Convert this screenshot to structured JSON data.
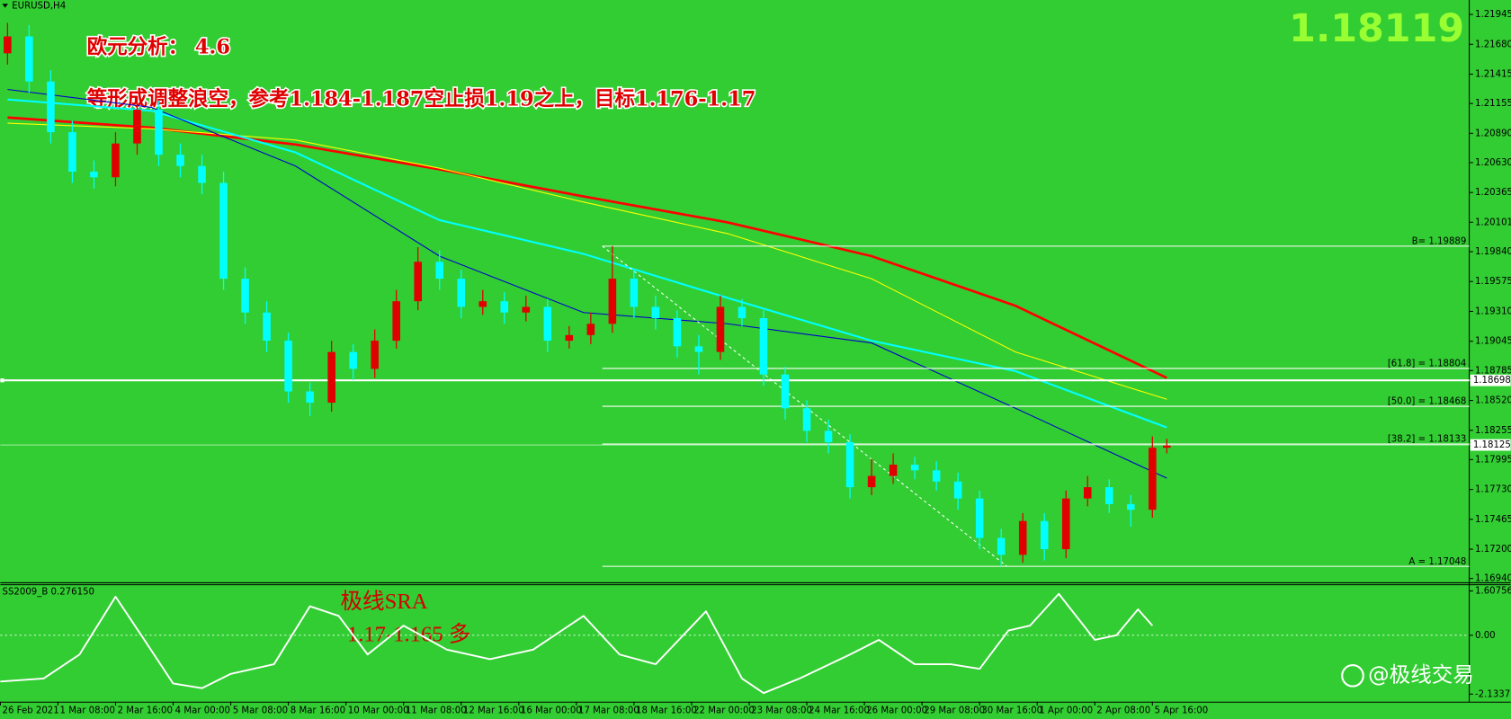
{
  "chart_data": [
    {
      "type": "candlestick",
      "symbol": "EURUSD,H4",
      "bid": 1.18119,
      "annotations": [
        "欧元分析：  4.6",
        "等形成调整浪空，参考1.184-1.187空止损1.19之上，目标1.176-1.17"
      ],
      "up_color": "#e00000",
      "down_color": "#00ffff",
      "x": [
        0,
        3,
        6,
        9,
        12,
        15,
        18,
        21,
        24,
        27,
        30,
        33,
        36,
        39,
        42,
        45,
        48,
        51,
        54,
        57,
        60,
        63,
        66,
        69,
        72,
        75,
        78,
        81,
        84,
        87,
        90,
        93,
        96,
        99,
        102,
        105,
        108,
        111,
        114,
        117,
        120,
        123,
        126,
        129,
        132,
        135,
        138,
        141,
        144,
        147,
        150,
        153,
        156,
        159,
        161
      ],
      "open": [
        1.216,
        1.2175,
        1.2135,
        1.209,
        1.2055,
        1.205,
        1.208,
        1.211,
        1.207,
        1.206,
        1.2045,
        1.196,
        1.193,
        1.1905,
        1.186,
        1.185,
        1.1895,
        1.188,
        1.1905,
        1.194,
        1.1975,
        1.196,
        1.1935,
        1.194,
        1.193,
        1.1935,
        1.1905,
        1.191,
        1.192,
        1.196,
        1.1935,
        1.1925,
        1.19,
        1.1895,
        1.1935,
        1.1925,
        1.1875,
        1.1845,
        1.1825,
        1.1815,
        1.1775,
        1.1785,
        1.1795,
        1.179,
        1.178,
        1.1765,
        1.173,
        1.1715,
        1.1745,
        1.172,
        1.1765,
        1.1775,
        1.176,
        1.1755,
        1.181
      ],
      "high": [
        1.2187,
        1.2185,
        1.2145,
        1.21,
        1.2065,
        1.209,
        1.2122,
        1.2118,
        1.208,
        1.207,
        1.2055,
        1.197,
        1.194,
        1.1912,
        1.1868,
        1.1905,
        1.1902,
        1.1915,
        1.195,
        1.1988,
        1.1985,
        1.1968,
        1.195,
        1.1948,
        1.1945,
        1.1942,
        1.1918,
        1.193,
        1.1989,
        1.1968,
        1.1945,
        1.1932,
        1.191,
        1.1945,
        1.1942,
        1.1932,
        1.1882,
        1.1852,
        1.1835,
        1.1822,
        1.18,
        1.1805,
        1.1802,
        1.1798,
        1.1788,
        1.1772,
        1.1738,
        1.1752,
        1.1752,
        1.1772,
        1.1785,
        1.1782,
        1.1768,
        1.182,
        1.1818
      ],
      "low": [
        1.215,
        1.2125,
        1.208,
        1.2045,
        1.204,
        1.2042,
        1.207,
        1.206,
        1.205,
        1.2035,
        1.195,
        1.192,
        1.1895,
        1.185,
        1.1838,
        1.1842,
        1.187,
        1.1872,
        1.1898,
        1.1932,
        1.195,
        1.1925,
        1.1928,
        1.192,
        1.1922,
        1.1895,
        1.1898,
        1.1902,
        1.1912,
        1.1925,
        1.1915,
        1.189,
        1.1875,
        1.1888,
        1.1918,
        1.1865,
        1.1835,
        1.1815,
        1.1805,
        1.1765,
        1.1768,
        1.1778,
        1.1782,
        1.1772,
        1.1755,
        1.172,
        1.1705,
        1.1708,
        1.171,
        1.1712,
        1.1758,
        1.1752,
        1.174,
        1.1748,
        1.1805
      ],
      "close": [
        1.2175,
        1.2135,
        1.209,
        1.2055,
        1.205,
        1.208,
        1.211,
        1.207,
        1.206,
        1.2045,
        1.196,
        1.193,
        1.1905,
        1.186,
        1.185,
        1.1895,
        1.188,
        1.1905,
        1.194,
        1.1975,
        1.196,
        1.1935,
        1.194,
        1.193,
        1.1935,
        1.1905,
        1.191,
        1.192,
        1.196,
        1.1935,
        1.1925,
        1.19,
        1.1895,
        1.1935,
        1.1925,
        1.1875,
        1.1845,
        1.1825,
        1.1815,
        1.1775,
        1.1785,
        1.1795,
        1.179,
        1.178,
        1.1765,
        1.173,
        1.1715,
        1.1745,
        1.172,
        1.1765,
        1.1775,
        1.176,
        1.1755,
        1.181,
        1.1812
      ],
      "moving_averages": [
        {
          "color": "#ff0000",
          "x": [
            0,
            20,
            40,
            60,
            80,
            100,
            120,
            140,
            161
          ],
          "values": [
            1.2103,
            1.2094,
            1.2079,
            1.2057,
            1.2033,
            1.201,
            1.198,
            1.1936,
            1.1872
          ]
        },
        {
          "color": "#ffff00",
          "x": [
            0,
            20,
            40,
            60,
            80,
            100,
            120,
            140,
            161
          ],
          "values": [
            1.2098,
            1.2093,
            1.2083,
            1.2058,
            1.2028,
            1.2,
            1.196,
            1.1895,
            1.1853
          ]
        },
        {
          "color": "#00ffff",
          "x": [
            0,
            20,
            40,
            60,
            80,
            100,
            120,
            140,
            161
          ],
          "values": [
            1.2119,
            1.2109,
            1.2072,
            1.2012,
            1.1982,
            1.1943,
            1.1905,
            1.1878,
            1.1828
          ]
        },
        {
          "color": "#0000cd",
          "x": [
            0,
            20,
            40,
            60,
            80,
            100,
            120,
            140,
            161
          ],
          "values": [
            1.2128,
            1.2112,
            1.206,
            1.198,
            1.193,
            1.192,
            1.1903,
            1.1845,
            1.1783
          ]
        }
      ],
      "levels": [
        {
          "value": 1.19889,
          "label": "B= 1.19889"
        },
        {
          "value": 1.18804,
          "label": "[61.8] = 1.18804"
        },
        {
          "value": 1.18468,
          "label": "[50.0] = 1.18468"
        },
        {
          "value": 1.18133,
          "label": "[38.2] = 1.18133"
        },
        {
          "value": 1.17048,
          "label": "A = 1.17048"
        }
      ],
      "hlines": [
        1.18698
      ],
      "price": 1.18125,
      "xlim": [
        -1,
        203
      ],
      "ylim": [
        1.16906,
        1.22073
      ],
      "yticks": [
        1.21945,
        {
          "value": 1.2168,
          "label": "1.21680"
        },
        1.21415,
        1.21155,
        {
          "value": 1.2089,
          "label": "1.20890"
        },
        {
          "value": 1.2063,
          "label": "1.20630"
        },
        1.20365,
        1.20101,
        {
          "value": 1.1984,
          "label": "1.19840"
        },
        1.19575,
        {
          "value": 1.1931,
          "label": "1.19310"
        },
        1.19045,
        1.18785,
        {
          "value": 1.1852,
          "label": "1.18520"
        },
        1.18255,
        1.17995,
        {
          "value": 1.1773,
          "label": "1.17730"
        },
        1.17465,
        {
          "value": 1.172,
          "label": "1.17200"
        },
        {
          "value": 1.1694,
          "label": "1.16940"
        }
      ],
      "xticks": [
        {
          "value": -1,
          "label": "26 Feb 2021"
        },
        {
          "value": 7,
          "label": "1 Mar 08:00"
        },
        {
          "value": 15,
          "label": "2 Mar 16:00"
        },
        {
          "value": 23,
          "label": "4 Mar 00:00"
        },
        {
          "value": 31,
          "label": "5 Mar 08:00"
        },
        {
          "value": 39,
          "label": "8 Mar 16:00"
        },
        {
          "value": 47,
          "label": "10 Mar 00:00"
        },
        {
          "value": 55,
          "label": "11 Mar 08:00"
        },
        {
          "value": 63,
          "label": "12 Mar 16:00"
        },
        {
          "value": 71,
          "label": "16 Mar 00:00"
        },
        {
          "value": 79,
          "label": "17 Mar 08:00"
        },
        {
          "value": 87,
          "label": "18 Mar 16:00"
        },
        {
          "value": 95,
          "label": "22 Mar 00:00"
        },
        {
          "value": 103,
          "label": "23 Mar 08:00"
        },
        {
          "value": 111,
          "label": "24 Mar 16:00"
        },
        {
          "value": 119,
          "label": "26 Mar 00:00"
        },
        {
          "value": 127,
          "label": "29 Mar 08:00"
        },
        {
          "value": 135,
          "label": "30 Mar 16:00"
        },
        {
          "value": 143,
          "label": "1 Apr 00:00"
        },
        {
          "value": 151,
          "label": "2 Apr 08:00"
        },
        {
          "value": 159,
          "label": "5 Apr 16:00"
        }
      ]
    },
    {
      "type": "line",
      "title": "SS2009_B 0.276150",
      "annotations": [
        "极线SRA",
        "1.17-1.165 多"
      ],
      "color": "#ffffff",
      "x": [
        -1,
        5,
        10,
        15,
        19,
        23,
        27,
        31,
        37,
        42,
        46,
        50,
        55,
        61,
        67,
        73,
        80,
        85,
        90,
        97,
        102,
        105,
        110,
        117,
        121,
        126,
        131,
        135,
        139,
        142,
        146,
        151,
        154,
        157,
        159
      ],
      "values": [
        -1.68,
        -1.57,
        -0.7,
        1.4,
        -0.17,
        -1.75,
        -1.92,
        -1.4,
        -1.05,
        1.05,
        0.7,
        -0.7,
        0.35,
        -0.52,
        -0.87,
        -0.52,
        0.7,
        -0.7,
        -1.05,
        0.87,
        -1.57,
        -2.1,
        -1.57,
        -0.7,
        -0.17,
        -1.05,
        -1.05,
        -1.22,
        0.17,
        0.35,
        1.5,
        -0.17,
        0,
        0.94,
        0.35
      ],
      "xlim": [
        -1,
        203
      ],
      "ylim": [
        -2.41,
        1.85
      ],
      "yticks": [
        1.607565,
        {
          "value": 0,
          "label": "0.00"
        },
        -2.133781
      ]
    }
  ],
  "watermark": "@极线交易"
}
